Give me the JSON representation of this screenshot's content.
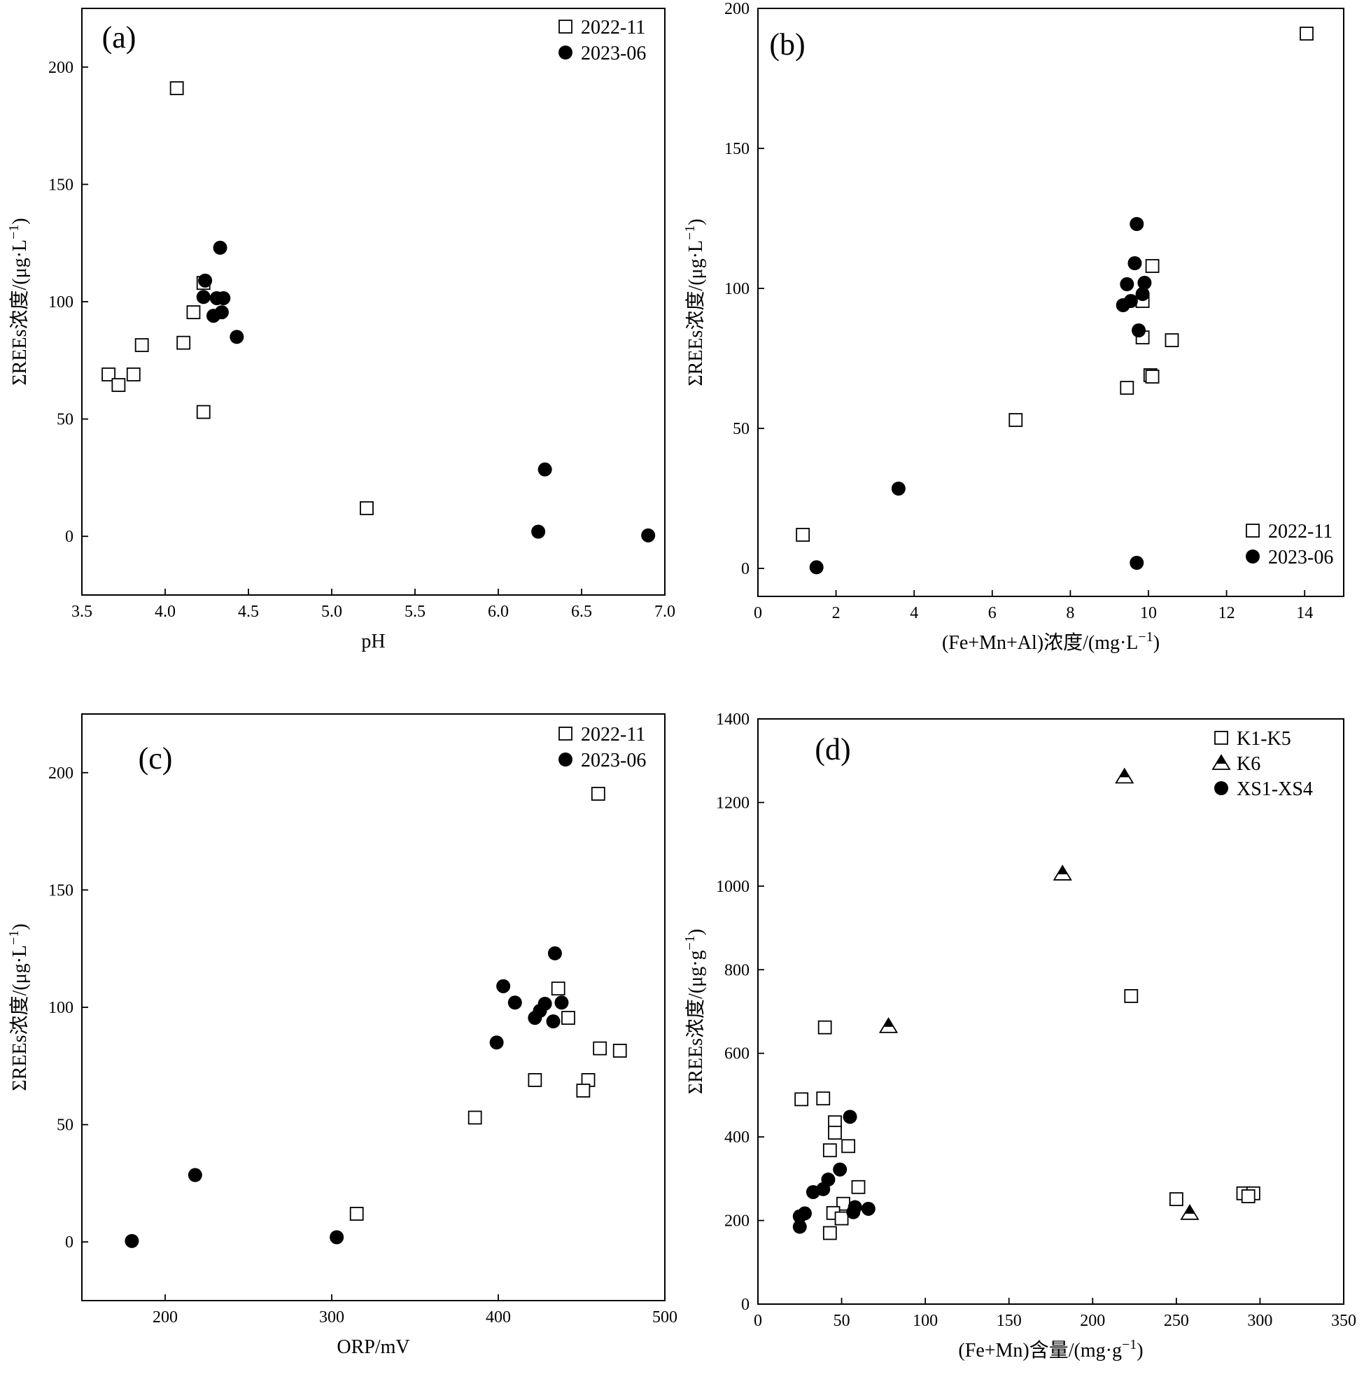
{
  "chart_data": [
    {
      "id": "a",
      "type": "scatter",
      "panel_label": "(a)",
      "xlabel": "pH",
      "ylabel": "ΣREEs浓度/(μg·L⁻¹)",
      "xlim": [
        3.5,
        7.0
      ],
      "ylim": [
        -25,
        225
      ],
      "xticks": [
        3.5,
        4.0,
        4.5,
        5.0,
        5.5,
        6.0,
        6.5,
        7.0
      ],
      "xtick_labels": [
        "3.5",
        "4.0",
        "4.5",
        "5.0",
        "5.5",
        "6.0",
        "6.5",
        "7.0"
      ],
      "yticks": [
        0,
        50,
        100,
        150,
        200
      ],
      "ytick_labels": [
        "0",
        "50",
        "100",
        "150",
        "200"
      ],
      "legend_position": "top-right",
      "series": [
        {
          "name": "2022-11",
          "marker": "open-square",
          "points": [
            {
              "x": 4.07,
              "y": 191
            },
            {
              "x": 4.23,
              "y": 108
            },
            {
              "x": 4.17,
              "y": 95.5
            },
            {
              "x": 3.86,
              "y": 81.5
            },
            {
              "x": 4.11,
              "y": 82.5
            },
            {
              "x": 3.66,
              "y": 69
            },
            {
              "x": 3.81,
              "y": 69
            },
            {
              "x": 3.72,
              "y": 64.5
            },
            {
              "x": 4.23,
              "y": 53
            },
            {
              "x": 5.21,
              "y": 12
            }
          ]
        },
        {
          "name": "2023-06",
          "marker": "filled-circle",
          "points": [
            {
              "x": 4.33,
              "y": 123
            },
            {
              "x": 4.24,
              "y": 109
            },
            {
              "x": 4.23,
              "y": 102
            },
            {
              "x": 4.31,
              "y": 101.5
            },
            {
              "x": 4.35,
              "y": 101.5
            },
            {
              "x": 4.34,
              "y": 95.5
            },
            {
              "x": 4.29,
              "y": 94
            },
            {
              "x": 4.43,
              "y": 85
            },
            {
              "x": 6.28,
              "y": 28.5
            },
            {
              "x": 6.24,
              "y": 2
            },
            {
              "x": 6.9,
              "y": 0.4
            }
          ]
        }
      ]
    },
    {
      "id": "b",
      "type": "scatter",
      "panel_label": "(b)",
      "xlabel": "(Fe+Mn+Al)浓度/(mg·L⁻¹)",
      "ylabel": "ΣREEs浓度/(μg·L⁻¹)",
      "xlim": [
        0,
        15
      ],
      "ylim": [
        -10,
        200
      ],
      "xticks": [
        0,
        2,
        4,
        6,
        8,
        10,
        12,
        14
      ],
      "xtick_labels": [
        "0",
        "2",
        "4",
        "6",
        "8",
        "10",
        "12",
        "14"
      ],
      "yticks": [
        0,
        50,
        100,
        150,
        200
      ],
      "ytick_labels": [
        "0",
        "50",
        "100",
        "150",
        "200"
      ],
      "legend_position": "bottom-right",
      "series": [
        {
          "name": "2022-11",
          "marker": "open-square",
          "points": [
            {
              "x": 14.05,
              "y": 191
            },
            {
              "x": 10.1,
              "y": 108
            },
            {
              "x": 9.85,
              "y": 95.5
            },
            {
              "x": 9.85,
              "y": 82.5
            },
            {
              "x": 10.6,
              "y": 81.5
            },
            {
              "x": 10.05,
              "y": 69
            },
            {
              "x": 10.1,
              "y": 68.5
            },
            {
              "x": 9.45,
              "y": 64.5
            },
            {
              "x": 6.6,
              "y": 53
            },
            {
              "x": 1.15,
              "y": 12
            }
          ]
        },
        {
          "name": "2023-06",
          "marker": "filled-circle",
          "points": [
            {
              "x": 9.7,
              "y": 123
            },
            {
              "x": 9.65,
              "y": 109
            },
            {
              "x": 9.9,
              "y": 102
            },
            {
              "x": 9.45,
              "y": 101.5
            },
            {
              "x": 9.85,
              "y": 98
            },
            {
              "x": 9.55,
              "y": 95.5
            },
            {
              "x": 9.35,
              "y": 94
            },
            {
              "x": 9.75,
              "y": 85
            },
            {
              "x": 3.6,
              "y": 28.5
            },
            {
              "x": 9.7,
              "y": 2
            },
            {
              "x": 1.5,
              "y": 0.4
            }
          ]
        }
      ]
    },
    {
      "id": "c",
      "type": "scatter",
      "panel_label": "(c)",
      "xlabel": "ORP/mV",
      "ylabel": "ΣREEs浓度/(μg·L⁻¹)",
      "xlim": [
        150,
        500
      ],
      "ylim": [
        -25,
        225
      ],
      "xticks": [
        200,
        300,
        400,
        500
      ],
      "xtick_labels": [
        "200",
        "300",
        "400",
        "500"
      ],
      "yticks": [
        0,
        50,
        100,
        150,
        200
      ],
      "ytick_labels": [
        "0",
        "50",
        "100",
        "150",
        "200"
      ],
      "legend_position": "top-right",
      "series": [
        {
          "name": "2022-11",
          "marker": "open-square",
          "points": [
            {
              "x": 460,
              "y": 191
            },
            {
              "x": 436,
              "y": 108
            },
            {
              "x": 442,
              "y": 95.5
            },
            {
              "x": 461,
              "y": 82.5
            },
            {
              "x": 473,
              "y": 81.5
            },
            {
              "x": 422,
              "y": 69
            },
            {
              "x": 454,
              "y": 69
            },
            {
              "x": 451,
              "y": 64.5
            },
            {
              "x": 386,
              "y": 53
            },
            {
              "x": 315,
              "y": 12
            }
          ]
        },
        {
          "name": "2023-06",
          "marker": "filled-circle",
          "points": [
            {
              "x": 434,
              "y": 123
            },
            {
              "x": 403,
              "y": 109
            },
            {
              "x": 410,
              "y": 102
            },
            {
              "x": 438,
              "y": 102
            },
            {
              "x": 428,
              "y": 101.5
            },
            {
              "x": 425,
              "y": 98.5
            },
            {
              "x": 422,
              "y": 95.5
            },
            {
              "x": 433,
              "y": 94
            },
            {
              "x": 399,
              "y": 85
            },
            {
              "x": 218,
              "y": 28.5
            },
            {
              "x": 303,
              "y": 2
            },
            {
              "x": 180,
              "y": 0.4
            }
          ]
        }
      ]
    },
    {
      "id": "d",
      "type": "scatter",
      "panel_label": "(d)",
      "xlabel": "(Fe+Mn)含量/(mg·g⁻¹)",
      "ylabel": "ΣREEs浓度/(μg·g⁻¹)",
      "xlim": [
        0,
        350
      ],
      "ylim": [
        0,
        1400
      ],
      "xticks": [
        0,
        50,
        100,
        150,
        200,
        250,
        300,
        350
      ],
      "xtick_labels": [
        "0",
        "50",
        "100",
        "150",
        "200",
        "250",
        "300",
        "350"
      ],
      "yticks": [
        0,
        200,
        400,
        600,
        800,
        1000,
        1200,
        1400
      ],
      "ytick_labels": [
        "0",
        "200",
        "400",
        "600",
        "800",
        "1000",
        "1200",
        "1400"
      ],
      "legend_position": "top-right",
      "series": [
        {
          "name": "K1-K5",
          "marker": "open-square",
          "points": [
            {
              "x": 40,
              "y": 662
            },
            {
              "x": 26,
              "y": 490
            },
            {
              "x": 39,
              "y": 492
            },
            {
              "x": 46,
              "y": 435
            },
            {
              "x": 46,
              "y": 410
            },
            {
              "x": 54,
              "y": 378
            },
            {
              "x": 43,
              "y": 368
            },
            {
              "x": 60,
              "y": 280
            },
            {
              "x": 51,
              "y": 240
            },
            {
              "x": 45,
              "y": 218
            },
            {
              "x": 50,
              "y": 205
            },
            {
              "x": 43,
              "y": 170
            },
            {
              "x": 223,
              "y": 737
            },
            {
              "x": 250,
              "y": 251
            },
            {
              "x": 290,
              "y": 265
            },
            {
              "x": 296,
              "y": 265
            },
            {
              "x": 293,
              "y": 258
            }
          ]
        },
        {
          "name": "K6",
          "marker": "half-filled-triangle",
          "points": [
            {
              "x": 219,
              "y": 1262
            },
            {
              "x": 182,
              "y": 1030
            },
            {
              "x": 78,
              "y": 665
            },
            {
              "x": 258,
              "y": 218
            }
          ]
        },
        {
          "name": "XS1-XS4",
          "marker": "filled-circle",
          "points": [
            {
              "x": 55,
              "y": 448
            },
            {
              "x": 49,
              "y": 322
            },
            {
              "x": 42,
              "y": 298
            },
            {
              "x": 33,
              "y": 268
            },
            {
              "x": 39,
              "y": 275
            },
            {
              "x": 58,
              "y": 232
            },
            {
              "x": 66,
              "y": 228
            },
            {
              "x": 57,
              "y": 220
            },
            {
              "x": 28,
              "y": 217
            },
            {
              "x": 25,
              "y": 210
            },
            {
              "x": 25,
              "y": 185
            }
          ]
        }
      ]
    }
  ]
}
